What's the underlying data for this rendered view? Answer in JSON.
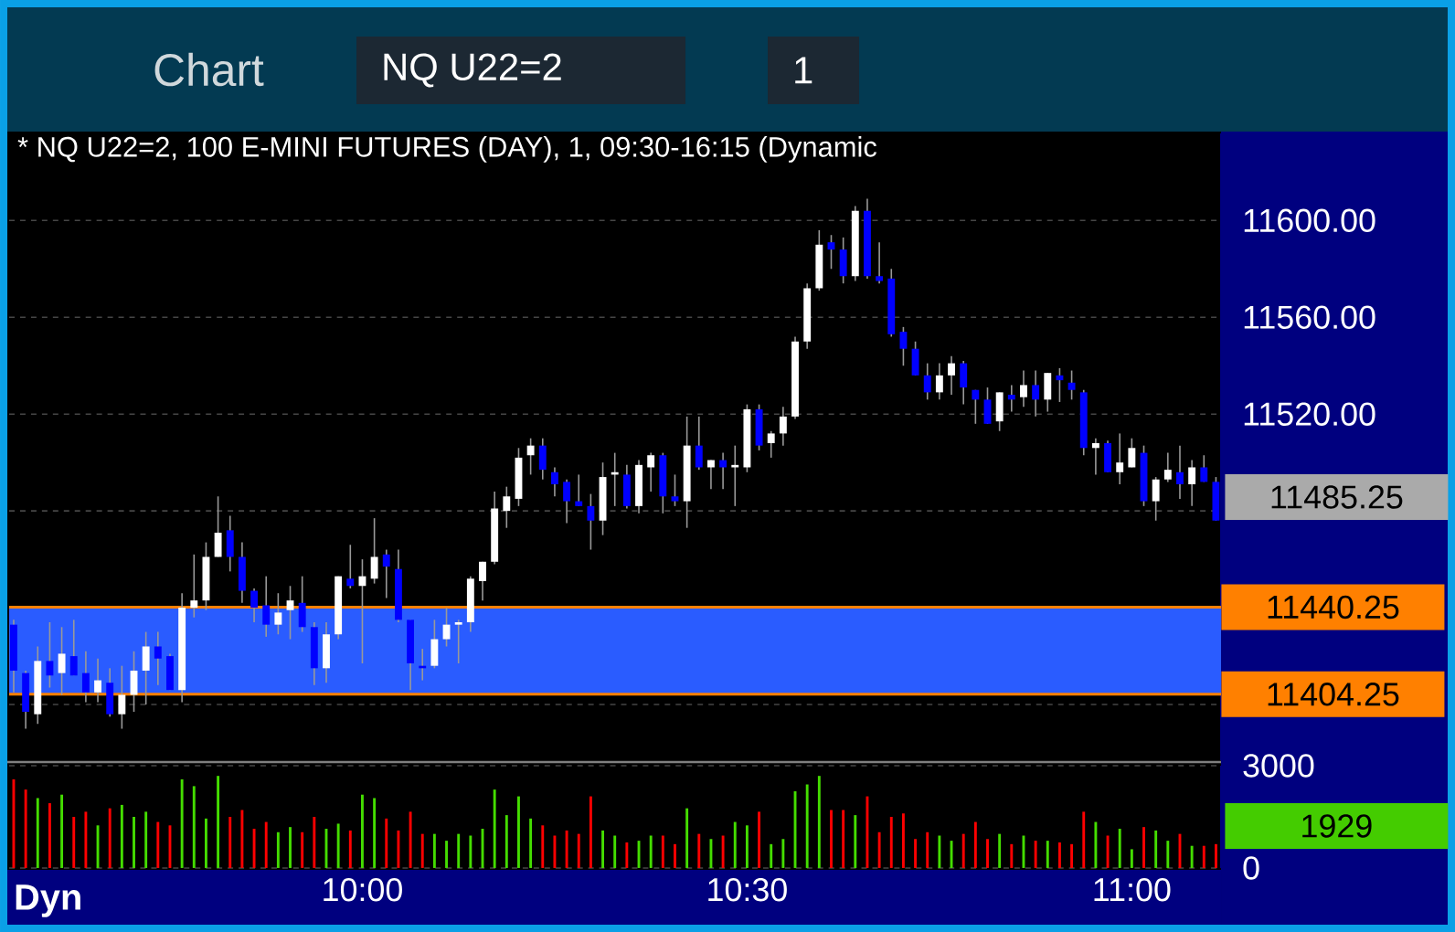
{
  "chart_data": [
    {
      "type": "candlestick",
      "title": "* NQ U22=2, 100 E-MINI FUTURES (DAY), 1, 09:30-16:15 (Dynamic",
      "x": [
        9.546875,
        9.5625,
        9.578125,
        9.59375,
        9.609375,
        9.625,
        9.640625,
        9.65625,
        9.671875,
        9.6875,
        9.703125,
        9.71875,
        9.734375,
        9.75,
        9.765625,
        9.78125,
        9.796875,
        9.8125,
        9.828125,
        9.84375,
        9.859375,
        9.875,
        9.890625,
        9.90625,
        9.921875,
        9.9375,
        9.953125,
        9.96875,
        9.984375,
        10,
        10.015625,
        10.03125,
        10.046875,
        10.0625,
        10.078125,
        10.09375,
        10.109375,
        10.125,
        10.140625,
        10.15625,
        10.171875,
        10.1875,
        10.203125,
        10.21875,
        10.234375,
        10.25,
        10.265625,
        10.28125,
        10.296875,
        10.3125,
        10.328125,
        10.34375,
        10.359375,
        10.375,
        10.390625,
        10.40625,
        10.421875,
        10.4375,
        10.453125,
        10.46875,
        10.484375,
        10.5,
        10.515625,
        10.53125,
        10.546875,
        10.5625,
        10.578125,
        10.59375,
        10.609375,
        10.625,
        10.640625,
        10.65625,
        10.671875,
        10.6875,
        10.703125,
        10.71875,
        10.734375,
        10.75,
        10.765625,
        10.78125,
        10.796875,
        10.8125,
        10.828125,
        10.84375,
        10.859375,
        10.875,
        10.890625,
        10.90625,
        10.921875,
        10.9375,
        10.953125,
        10.96875,
        10.984375,
        11,
        11.015625,
        11.03125,
        11.046875,
        11.0625,
        11.078125,
        11.09375,
        11.109375
      ],
      "ohlc": [
        [
          11433,
          11435,
          11405,
          11414
        ],
        [
          11413,
          11414,
          11390,
          11397
        ],
        [
          11396,
          11424,
          11392,
          11418
        ],
        [
          11418,
          11434,
          11407,
          11412
        ],
        [
          11413,
          11432,
          11404,
          11421
        ],
        [
          11420,
          11435,
          11412,
          11412
        ],
        [
          11413,
          11422,
          11401,
          11405
        ],
        [
          11405,
          11419,
          11401,
          11410
        ],
        [
          11409,
          11415,
          11395,
          11396
        ],
        [
          11396,
          11416,
          11390,
          11404
        ],
        [
          11404,
          11422,
          11397,
          11414
        ],
        [
          11414,
          11430,
          11400,
          11424
        ],
        [
          11424,
          11430,
          11408,
          11419
        ],
        [
          11420,
          11421,
          11406,
          11406
        ],
        [
          11406,
          11446,
          11401,
          11440
        ],
        [
          11440,
          11462,
          11436,
          11443
        ],
        [
          11443,
          11467,
          11439,
          11461
        ],
        [
          11461,
          11486,
          11461,
          11471
        ],
        [
          11472,
          11478,
          11455,
          11461
        ],
        [
          11461,
          11467,
          11442,
          11447
        ],
        [
          11447,
          11448,
          11434,
          11440
        ],
        [
          11441,
          11453,
          11428,
          11433
        ],
        [
          11433,
          11446,
          11429,
          11438
        ],
        [
          11439,
          11449,
          11427,
          11443
        ],
        [
          11442,
          11453,
          11430,
          11432
        ],
        [
          11432,
          11434,
          11408,
          11415
        ],
        [
          11415,
          11434,
          11409,
          11429
        ],
        [
          11429,
          11453,
          11427,
          11453
        ],
        [
          11452,
          11466,
          11448,
          11449
        ],
        [
          11449,
          11460,
          11417,
          11453
        ],
        [
          11452,
          11477,
          11450,
          11461
        ],
        [
          11462,
          11464,
          11444,
          11457
        ],
        [
          11456,
          11464,
          11434,
          11435
        ],
        [
          11435,
          11435,
          11406,
          11417
        ],
        [
          11416,
          11423,
          11410,
          11415
        ],
        [
          11416,
          11435,
          11415,
          11427
        ],
        [
          11427,
          11440,
          11424,
          11433
        ],
        [
          11433,
          11435,
          11417,
          11434
        ],
        [
          11434,
          11453,
          11430,
          11452
        ],
        [
          11451,
          11459,
          11443,
          11459
        ],
        [
          11459,
          11488,
          11458,
          11481
        ],
        [
          11480,
          11490,
          11473,
          11486
        ],
        [
          11485,
          11506,
          11482,
          11502
        ],
        [
          11503,
          11510,
          11495,
          11507
        ],
        [
          11507,
          11510,
          11493,
          11497
        ],
        [
          11496,
          11498,
          11486,
          11491
        ],
        [
          11492,
          11493,
          11475,
          11484
        ],
        [
          11484,
          11495,
          11482,
          11482
        ],
        [
          11482,
          11487,
          11464,
          11476
        ],
        [
          11476,
          11500,
          11470,
          11494
        ],
        [
          11495,
          11504,
          11482,
          11496
        ],
        [
          11495,
          11499,
          11481,
          11482
        ],
        [
          11482,
          11501,
          11479,
          11499
        ],
        [
          11498,
          11504,
          11488,
          11503
        ],
        [
          11503,
          11504,
          11479,
          11486
        ],
        [
          11486,
          11495,
          11482,
          11484
        ],
        [
          11484,
          11519,
          11473,
          11507
        ],
        [
          11507,
          11519,
          11497,
          11498
        ],
        [
          11498,
          11501,
          11489,
          11501
        ],
        [
          11501,
          11504,
          11489,
          11498
        ],
        [
          11498,
          11507,
          11482,
          11499
        ],
        [
          11498,
          11524,
          11496,
          11522
        ],
        [
          11522,
          11524,
          11505,
          11507
        ],
        [
          11508,
          11513,
          11502,
          11512
        ],
        [
          11512,
          11523,
          11507,
          11519
        ],
        [
          11519,
          11552,
          11518,
          11550
        ],
        [
          11550,
          11574,
          11547,
          11572
        ],
        [
          11572,
          11596,
          11571,
          11590
        ],
        [
          11591,
          11594,
          11580,
          11588
        ],
        [
          11588,
          11593,
          11574,
          11577
        ],
        [
          11577,
          11606,
          11575,
          11604
        ],
        [
          11604,
          11609,
          11576,
          11577
        ],
        [
          11577,
          11591,
          11574,
          11575
        ],
        [
          11576,
          11580,
          11552,
          11553
        ],
        [
          11554,
          11556,
          11540,
          11547
        ],
        [
          11547,
          11550,
          11536,
          11536
        ],
        [
          11536,
          11541,
          11526,
          11529
        ],
        [
          11529,
          11541,
          11526,
          11536
        ],
        [
          11536,
          11544,
          11528,
          11541
        ],
        [
          11541,
          11542,
          11524,
          11531
        ],
        [
          11530,
          11530,
          11516,
          11526
        ],
        [
          11526,
          11531,
          11516,
          11516
        ],
        [
          11517,
          11529,
          11513,
          11529
        ],
        [
          11528,
          11532,
          11521,
          11526
        ],
        [
          11527,
          11538,
          11523,
          11532
        ],
        [
          11532,
          11538,
          11519,
          11526
        ],
        [
          11526,
          11537,
          11521,
          11537
        ],
        [
          11536,
          11539,
          11525,
          11534
        ],
        [
          11533,
          11538,
          11526,
          11530
        ],
        [
          11529,
          11530,
          11503,
          11506
        ],
        [
          11506,
          11510,
          11495,
          11508
        ],
        [
          11508,
          11509,
          11496,
          11496
        ],
        [
          11496,
          11512,
          11491,
          11500
        ],
        [
          11498,
          11510,
          11498,
          11506
        ],
        [
          11504,
          11507,
          11482,
          11484
        ],
        [
          11484,
          11494,
          11476,
          11493
        ],
        [
          11493,
          11504,
          11492,
          11497
        ],
        [
          11496,
          11507,
          11485,
          11491
        ],
        [
          11491,
          11501,
          11482,
          11498
        ],
        [
          11498,
          11503,
          11492,
          11492
        ],
        [
          11492,
          11494,
          11476,
          11476
        ]
      ],
      "xlim": [
        9.541,
        11.116
      ],
      "ylim": [
        11377,
        11636
      ],
      "yticks": [
        {
          "value": 11400,
          "label": null
        },
        {
          "value": 11440,
          "label": null
        },
        {
          "value": 11480,
          "label": null
        },
        {
          "value": 11520,
          "label": "11520.00"
        },
        {
          "value": 11560,
          "label": "11560.00"
        },
        {
          "value": 11600,
          "label": "11600.00"
        }
      ],
      "grid": "y",
      "tick_labels": "y",
      "bands": [
        {
          "axis": "y",
          "from": 11404.25,
          "to": 11440.25,
          "color": "#2a5cff"
        }
      ],
      "ref_lines": [
        {
          "axis": "y",
          "value": 11440.25,
          "label": "11440.25",
          "color": "#ff8000"
        },
        {
          "axis": "y",
          "value": 11404.25,
          "label": "11404.25",
          "color": "#ff8000"
        }
      ],
      "annotations": [
        "Chart",
        "NQ U22=2",
        "1",
        "Dyn",
        "11485.25"
      ]
    },
    {
      "type": "bar",
      "x": [
        9.546875,
        9.5625,
        9.578125,
        9.59375,
        9.609375,
        9.625,
        9.640625,
        9.65625,
        9.671875,
        9.6875,
        9.703125,
        9.71875,
        9.734375,
        9.75,
        9.765625,
        9.78125,
        9.796875,
        9.8125,
        9.828125,
        9.84375,
        9.859375,
        9.875,
        9.890625,
        9.90625,
        9.921875,
        9.9375,
        9.953125,
        9.96875,
        9.984375,
        10,
        10.015625,
        10.03125,
        10.046875,
        10.0625,
        10.078125,
        10.09375,
        10.109375,
        10.125,
        10.140625,
        10.15625,
        10.171875,
        10.1875,
        10.203125,
        10.21875,
        10.234375,
        10.25,
        10.265625,
        10.28125,
        10.296875,
        10.3125,
        10.328125,
        10.34375,
        10.359375,
        10.375,
        10.390625,
        10.40625,
        10.421875,
        10.4375,
        10.453125,
        10.46875,
        10.484375,
        10.5,
        10.515625,
        10.53125,
        10.546875,
        10.5625,
        10.578125,
        10.59375,
        10.609375,
        10.625,
        10.640625,
        10.65625,
        10.671875,
        10.6875,
        10.703125,
        10.71875,
        10.734375,
        10.75,
        10.765625,
        10.78125,
        10.796875,
        10.8125,
        10.828125,
        10.84375,
        10.859375,
        10.875,
        10.890625,
        10.90625,
        10.921875,
        10.9375,
        10.953125,
        10.96875,
        10.984375,
        11,
        11.015625,
        11.03125,
        11.046875,
        11.0625,
        11.078125,
        11.09375,
        11.109375
      ],
      "values": [
        2600,
        2300,
        2050,
        1900,
        2150,
        1500,
        1650,
        1250,
        1750,
        1850,
        1500,
        1650,
        1350,
        1250,
        2600,
        2400,
        1450,
        2700,
        1500,
        1700,
        1150,
        1350,
        1050,
        1200,
        1050,
        1500,
        1150,
        1300,
        1100,
        2150,
        2050,
        1450,
        1100,
        1650,
        1000,
        1000,
        800,
        1000,
        950,
        1150,
        2300,
        1550,
        2100,
        1450,
        1250,
        950,
        1100,
        1000,
        2100,
        1100,
        950,
        750,
        800,
        950,
        950,
        700,
        1750,
        1000,
        850,
        950,
        1350,
        1250,
        1650,
        700,
        850,
        2250,
        2450,
        2700,
        1700,
        1700,
        1550,
        2100,
        1050,
        1500,
        1600,
        850,
        1050,
        950,
        800,
        1000,
        1350,
        850,
        1000,
        700,
        950,
        800,
        800,
        750,
        700,
        1650,
        1350,
        950,
        1150,
        550,
        1200,
        1100,
        800,
        1000,
        650,
        650,
        700
      ],
      "colors": [
        "#ff0000",
        "#ff0000",
        "#44dd00",
        "#ff0000",
        "#44dd00",
        "#ff0000",
        "#ff0000",
        "#44dd00",
        "#ff0000",
        "#44dd00",
        "#44dd00",
        "#44dd00",
        "#ff0000",
        "#ff0000",
        "#44dd00",
        "#44dd00",
        "#44dd00",
        "#44dd00",
        "#ff0000",
        "#ff0000",
        "#ff0000",
        "#ff0000",
        "#44dd00",
        "#44dd00",
        "#ff0000",
        "#ff0000",
        "#44dd00",
        "#44dd00",
        "#ff0000",
        "#44dd00",
        "#44dd00",
        "#ff0000",
        "#ff0000",
        "#ff0000",
        "#ff0000",
        "#44dd00",
        "#44dd00",
        "#44dd00",
        "#44dd00",
        "#44dd00",
        "#44dd00",
        "#44dd00",
        "#44dd00",
        "#44dd00",
        "#ff0000",
        "#ff0000",
        "#ff0000",
        "#ff0000",
        "#ff0000",
        "#44dd00",
        "#44dd00",
        "#ff0000",
        "#44dd00",
        "#44dd00",
        "#ff0000",
        "#ff0000",
        "#44dd00",
        "#ff0000",
        "#44dd00",
        "#ff0000",
        "#44dd00",
        "#44dd00",
        "#ff0000",
        "#44dd00",
        "#44dd00",
        "#44dd00",
        "#44dd00",
        "#44dd00",
        "#ff0000",
        "#ff0000",
        "#44dd00",
        "#ff0000",
        "#ff0000",
        "#ff0000",
        "#ff0000",
        "#ff0000",
        "#ff0000",
        "#44dd00",
        "#44dd00",
        "#ff0000",
        "#ff0000",
        "#ff0000",
        "#44dd00",
        "#ff0000",
        "#44dd00",
        "#ff0000",
        "#44dd00",
        "#ff0000",
        "#ff0000",
        "#ff0000",
        "#44dd00",
        "#ff0000",
        "#44dd00",
        "#44dd00",
        "#ff0000",
        "#44dd00",
        "#44dd00",
        "#ff0000",
        "#44dd00",
        "#ff0000",
        "#ff0000"
      ],
      "xlim": [
        9.541,
        11.116
      ],
      "ylim": [
        0,
        3000
      ],
      "yticks": [
        0,
        3000
      ],
      "xticks": [
        {
          "value": 10,
          "label": "10:00"
        },
        {
          "value": 10.5,
          "label": "10:30"
        },
        {
          "value": 11,
          "label": "11:00"
        }
      ],
      "grid": "y",
      "annotations": [
        "1929"
      ]
    }
  ]
}
